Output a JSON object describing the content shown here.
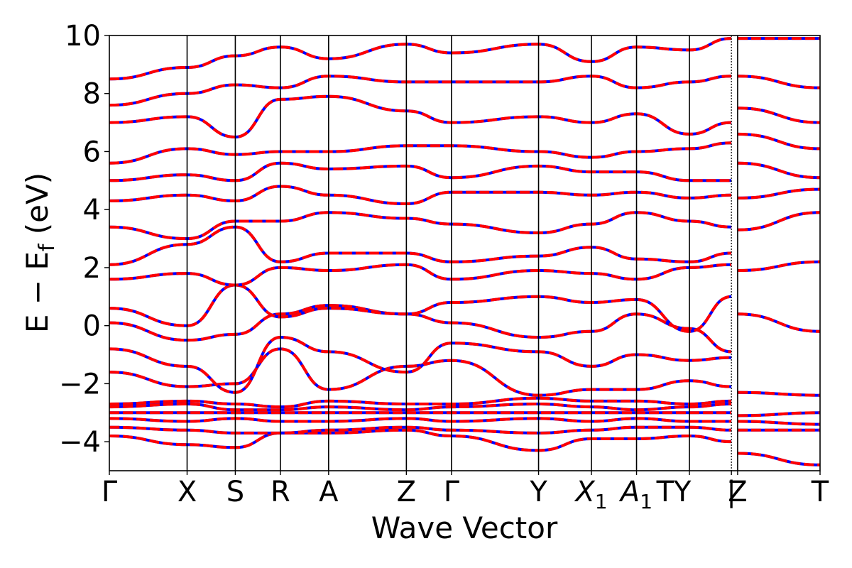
{
  "chart_data": {
    "type": "line",
    "xlabel": "Wave Vector",
    "ylabel": "E − E",
    "ylabel_sub": "f",
    "ylabel_unit": "(eV)",
    "ylim": [
      -5,
      10
    ],
    "yticks": [
      -4,
      -2,
      0,
      2,
      4,
      6,
      8,
      10
    ],
    "grid": false,
    "high_symmetry_points": [
      {
        "label": "Γ",
        "sub": "",
        "position": 0.0
      },
      {
        "label": "X",
        "sub": "",
        "position": 0.5
      },
      {
        "label": "S",
        "sub": "",
        "position": 0.81
      },
      {
        "label": "R",
        "sub": "",
        "position": 1.1
      },
      {
        "label": "A",
        "sub": "",
        "position": 1.41
      },
      {
        "label": "Z",
        "sub": "",
        "position": 1.91
      },
      {
        "label": "Γ",
        "sub": "",
        "position": 2.2
      },
      {
        "label": "Y",
        "sub": "",
        "position": 2.76
      },
      {
        "label": "X",
        "sub": "1",
        "position": 3.1
      },
      {
        "label": "A",
        "sub": "1",
        "position": 3.39
      },
      {
        "label": "TY",
        "sub": "",
        "position": 3.73
      },
      {
        "label": "|",
        "sub": "",
        "position": 4.0
      },
      {
        "label": "Z",
        "sub": "",
        "position": 4.04
      },
      {
        "label": "T",
        "sub": "",
        "position": 4.57
      }
    ],
    "xrange": [
      0,
      4.57
    ],
    "path_break": 4.0,
    "series_colors": {
      "reference": "#0000ff",
      "overlay": "#ff0000"
    },
    "bands": [
      {
        "x": [
          0,
          0.5,
          0.81,
          1.1,
          1.41,
          1.91,
          2.2,
          2.76,
          3.1,
          3.39,
          3.73,
          4.0
        ],
        "y": [
          -3.8,
          -4.1,
          -4.2,
          -3.7,
          -3.7,
          -3.6,
          -3.8,
          -4.3,
          -3.9,
          -3.9,
          -3.8,
          -4.0
        ]
      },
      {
        "x": [
          0,
          0.5,
          0.81,
          1.1,
          1.41,
          1.91,
          2.2,
          2.76,
          3.1,
          3.39,
          3.73,
          4.0
        ],
        "y": [
          -3.5,
          -3.6,
          -3.7,
          -3.7,
          -3.6,
          -3.5,
          -3.6,
          -3.7,
          -3.6,
          -3.5,
          -3.5,
          -3.6
        ]
      },
      {
        "x": [
          0,
          0.5,
          0.81,
          1.1,
          1.41,
          1.91,
          2.2,
          2.76,
          3.1,
          3.39,
          3.73,
          4.0
        ],
        "y": [
          -3.2,
          -3.3,
          -3.2,
          -3.3,
          -3.3,
          -3.2,
          -3.3,
          -3.2,
          -3.3,
          -3.2,
          -3.3,
          -3.3
        ]
      },
      {
        "x": [
          0,
          0.5,
          0.81,
          1.1,
          1.41,
          1.91,
          2.2,
          2.76,
          3.1,
          3.39,
          3.73,
          4.0
        ],
        "y": [
          -3.0,
          -3.0,
          -3.0,
          -3.0,
          -3.0,
          -3.0,
          -3.0,
          -3.0,
          -3.0,
          -3.0,
          -3.0,
          -3.0
        ]
      },
      {
        "x": [
          0,
          0.5,
          0.81,
          1.1,
          1.41,
          1.91,
          2.2,
          2.76,
          3.1,
          3.39,
          3.73,
          4.0
        ],
        "y": [
          -2.8,
          -2.7,
          -2.9,
          -2.9,
          -2.8,
          -2.9,
          -2.8,
          -2.7,
          -2.8,
          -2.9,
          -2.8,
          -2.7
        ]
      },
      {
        "x": [
          0,
          0.5,
          0.81,
          1.1,
          1.41,
          1.91,
          2.2,
          2.76,
          3.1,
          3.39,
          3.73,
          4.0
        ],
        "y": [
          -2.7,
          -2.6,
          -2.7,
          -2.8,
          -2.6,
          -2.7,
          -2.7,
          -2.5,
          -2.6,
          -2.6,
          -2.7,
          -2.6
        ]
      },
      {
        "x": [
          0,
          0.5,
          0.81,
          1.1,
          1.41,
          1.91,
          2.2,
          2.76,
          3.1,
          3.39,
          3.73,
          4.0
        ],
        "y": [
          -1.6,
          -2.1,
          -2.0,
          -0.8,
          -2.2,
          -1.4,
          -1.2,
          -2.4,
          -2.2,
          -2.2,
          -1.9,
          -2.1
        ]
      },
      {
        "x": [
          0,
          0.5,
          0.81,
          1.1,
          1.41,
          1.91,
          2.2,
          2.76,
          3.1,
          3.39,
          3.73,
          4.0
        ],
        "y": [
          -0.8,
          -1.4,
          -2.3,
          -0.4,
          -0.9,
          -1.6,
          -0.6,
          -0.9,
          -1.4,
          -1.0,
          -1.2,
          -1.1
        ]
      },
      {
        "x": [
          0,
          0.5,
          0.81,
          1.1,
          1.41,
          1.91,
          2.2,
          2.76,
          3.1,
          3.39,
          3.73,
          4.0
        ],
        "y": [
          0.1,
          -0.5,
          -0.3,
          0.4,
          0.7,
          0.4,
          0.1,
          -0.4,
          -0.2,
          0.4,
          -0.1,
          -0.9
        ]
      },
      {
        "x": [
          0,
          0.5,
          0.81,
          1.1,
          1.41,
          1.91,
          2.2,
          2.76,
          3.1,
          3.39,
          3.73,
          4.0
        ],
        "y": [
          0.6,
          0.0,
          1.4,
          0.3,
          0.6,
          0.4,
          0.8,
          1.0,
          0.8,
          0.9,
          -0.2,
          1.0
        ]
      },
      {
        "x": [
          0,
          0.5,
          0.81,
          1.1,
          1.41,
          1.91,
          2.2,
          2.76,
          3.1,
          3.39,
          3.73,
          4.0
        ],
        "y": [
          1.6,
          1.8,
          1.4,
          2.0,
          1.9,
          2.1,
          1.6,
          1.9,
          1.8,
          1.6,
          2.0,
          2.1
        ]
      },
      {
        "x": [
          0,
          0.5,
          0.81,
          1.1,
          1.41,
          1.91,
          2.2,
          2.76,
          3.1,
          3.39,
          3.73,
          4.0
        ],
        "y": [
          2.1,
          2.8,
          3.4,
          2.2,
          2.5,
          2.5,
          2.2,
          2.4,
          2.7,
          2.3,
          2.2,
          2.5
        ]
      },
      {
        "x": [
          0,
          0.5,
          0.81,
          1.1,
          1.41,
          1.91,
          2.2,
          2.76,
          3.1,
          3.39,
          3.73,
          4.0
        ],
        "y": [
          3.4,
          3.0,
          3.6,
          3.6,
          3.9,
          3.7,
          3.5,
          3.2,
          3.5,
          3.9,
          3.6,
          3.4
        ]
      },
      {
        "x": [
          0,
          0.5,
          0.81,
          1.1,
          1.41,
          1.91,
          2.2,
          2.76,
          3.1,
          3.39,
          3.73,
          4.0
        ],
        "y": [
          4.3,
          4.5,
          4.3,
          4.8,
          4.5,
          4.2,
          4.6,
          4.6,
          4.5,
          4.6,
          4.4,
          4.5
        ]
      },
      {
        "x": [
          0,
          0.5,
          0.81,
          1.1,
          1.41,
          1.91,
          2.2,
          2.76,
          3.1,
          3.39,
          3.73,
          4.0
        ],
        "y": [
          5.0,
          5.2,
          5.0,
          5.6,
          5.4,
          5.5,
          5.1,
          5.5,
          5.3,
          5.3,
          5.0,
          5.0
        ]
      },
      {
        "x": [
          0,
          0.5,
          0.81,
          1.1,
          1.41,
          1.91,
          2.2,
          2.76,
          3.1,
          3.39,
          3.73,
          4.0
        ],
        "y": [
          5.6,
          6.1,
          5.9,
          6.0,
          6.0,
          6.2,
          6.2,
          6.0,
          5.8,
          6.0,
          6.1,
          6.3
        ]
      },
      {
        "x": [
          0,
          0.5,
          0.81,
          1.1,
          1.41,
          1.91,
          2.2,
          2.76,
          3.1,
          3.39,
          3.73,
          4.0
        ],
        "y": [
          7.0,
          7.2,
          6.5,
          7.8,
          7.9,
          7.4,
          7.0,
          7.2,
          7.0,
          7.3,
          6.6,
          7.0
        ]
      },
      {
        "x": [
          0,
          0.5,
          0.81,
          1.1,
          1.41,
          1.91,
          2.2,
          2.76,
          3.1,
          3.39,
          3.73,
          4.0
        ],
        "y": [
          7.6,
          8.0,
          8.3,
          8.2,
          8.6,
          8.4,
          8.4,
          8.4,
          8.6,
          8.2,
          8.4,
          8.6
        ]
      },
      {
        "x": [
          0,
          0.5,
          0.81,
          1.1,
          1.41,
          1.91,
          2.2,
          2.76,
          3.1,
          3.39,
          3.73,
          4.0
        ],
        "y": [
          8.5,
          8.9,
          9.3,
          9.6,
          9.2,
          9.7,
          9.4,
          9.7,
          9.1,
          9.6,
          9.5,
          9.9
        ]
      },
      {
        "x": [
          4.04,
          4.57
        ],
        "y": [
          -4.4,
          -4.8
        ]
      },
      {
        "x": [
          4.04,
          4.57
        ],
        "y": [
          -3.6,
          -3.6
        ]
      },
      {
        "x": [
          4.04,
          4.57
        ],
        "y": [
          -3.3,
          -3.4
        ]
      },
      {
        "x": [
          4.04,
          4.57
        ],
        "y": [
          -3.1,
          -3.0
        ]
      },
      {
        "x": [
          4.04,
          4.57
        ],
        "y": [
          -2.3,
          -2.4
        ]
      },
      {
        "x": [
          4.04,
          4.57
        ],
        "y": [
          0.4,
          -0.2
        ]
      },
      {
        "x": [
          4.04,
          4.57
        ],
        "y": [
          1.9,
          2.2
        ]
      },
      {
        "x": [
          4.04,
          4.57
        ],
        "y": [
          3.3,
          3.9
        ]
      },
      {
        "x": [
          4.04,
          4.57
        ],
        "y": [
          4.4,
          4.7
        ]
      },
      {
        "x": [
          4.04,
          4.57
        ],
        "y": [
          5.6,
          5.1
        ]
      },
      {
        "x": [
          4.04,
          4.57
        ],
        "y": [
          6.6,
          6.1
        ]
      },
      {
        "x": [
          4.04,
          4.57
        ],
        "y": [
          7.5,
          7.0
        ]
      },
      {
        "x": [
          4.04,
          4.57
        ],
        "y": [
          8.6,
          8.2
        ]
      },
      {
        "x": [
          4.04,
          4.57
        ],
        "y": [
          9.9,
          9.9
        ]
      }
    ]
  }
}
